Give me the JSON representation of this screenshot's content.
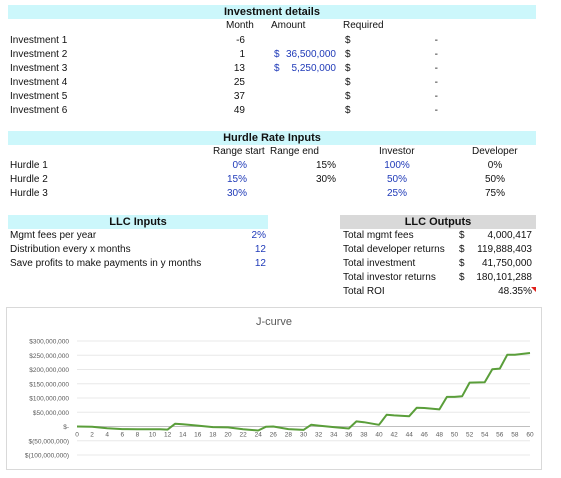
{
  "investment": {
    "title": "Investment details",
    "col_month": "Month",
    "col_amount": "Amount",
    "col_required": "Required",
    "rows": [
      {
        "name": "Investment 1",
        "month": "-6",
        "amount_sym": "",
        "amount": "",
        "req_sym": "$",
        "req": "-"
      },
      {
        "name": "Investment 2",
        "month": "1",
        "amount_sym": "$",
        "amount": "36,500,000",
        "req_sym": "$",
        "req": "-"
      },
      {
        "name": "Investment 3",
        "month": "13",
        "amount_sym": "$",
        "amount": "5,250,000",
        "req_sym": "$",
        "req": "-"
      },
      {
        "name": "Investment 4",
        "month": "25",
        "amount_sym": "",
        "amount": "",
        "req_sym": "$",
        "req": "-"
      },
      {
        "name": "Investment 5",
        "month": "37",
        "amount_sym": "",
        "amount": "",
        "req_sym": "$",
        "req": "-"
      },
      {
        "name": "Investment 6",
        "month": "49",
        "amount_sym": "",
        "amount": "",
        "req_sym": "$",
        "req": "-"
      }
    ]
  },
  "hurdle": {
    "title": "Hurdle Rate Inputs",
    "col_start": "Range start",
    "col_end": "Range end",
    "col_investor": "Investor",
    "col_developer": "Developer",
    "rows": [
      {
        "name": "Hurdle 1",
        "start": "0%",
        "end": "15%",
        "investor": "100%",
        "developer": "0%"
      },
      {
        "name": "Hurdle 2",
        "start": "15%",
        "end": "30%",
        "investor": "50%",
        "developer": "50%"
      },
      {
        "name": "Hurdle 3",
        "start": "30%",
        "end": "",
        "investor": "25%",
        "developer": "75%"
      }
    ]
  },
  "llc_inputs": {
    "title": "LLC Inputs",
    "rows": [
      {
        "label": "Mgmt fees per year",
        "value": "2%"
      },
      {
        "label": "Distribution every x months",
        "value": "12"
      },
      {
        "label": "Save profits to make payments in y months",
        "value": "12"
      }
    ]
  },
  "llc_outputs": {
    "title": "LLC Outputs",
    "rows": [
      {
        "label": "Total mgmt fees",
        "sym": "$",
        "value": "4,000,417"
      },
      {
        "label": "Total developer returns",
        "sym": "$",
        "value": "119,888,403"
      },
      {
        "label": "Total investment",
        "sym": "$",
        "value": "41,750,000"
      },
      {
        "label": "Total investor returns",
        "sym": "$",
        "value": "180,101,288"
      },
      {
        "label": "Total ROI",
        "sym": "",
        "value": "48.35%"
      }
    ]
  },
  "colors": {
    "header_cyan": "#ccf7fb",
    "header_gray": "#d9d9d9",
    "line": "#5a9e3a",
    "blue_input": "#1f3ab8"
  },
  "chart_data": {
    "type": "line",
    "title": "J-curve",
    "xlabel": "",
    "ylabel": "",
    "ylim": [
      -100000000,
      300000000
    ],
    "xlim": [
      0,
      60
    ],
    "y_ticks": [
      300000000,
      250000000,
      200000000,
      150000000,
      100000000,
      50000000,
      0,
      -50000000,
      -100000000
    ],
    "y_tick_labels": [
      "$300,000,000",
      "$250,000,000",
      "$200,000,000",
      "$150,000,000",
      "$100,000,000",
      "$50,000,000",
      "$-",
      "$(50,000,000)",
      "$(100,000,000)"
    ],
    "x_tick_labels": [
      "0",
      "2",
      "4",
      "6",
      "8",
      "10",
      "12",
      "14",
      "16",
      "18",
      "20",
      "22",
      "24",
      "26",
      "28",
      "30",
      "32",
      "34",
      "36",
      "38",
      "40",
      "42",
      "44",
      "46",
      "48",
      "50",
      "52",
      "54",
      "56",
      "58",
      "60"
    ],
    "grid": true,
    "series": [
      {
        "values": [
          [
            0,
            0
          ],
          [
            2,
            -1000000
          ],
          [
            4,
            -6000000
          ],
          [
            6,
            -9000000
          ],
          [
            8,
            -10000000
          ],
          [
            10,
            -10000000
          ],
          [
            11,
            -10000000
          ],
          [
            12,
            -11000000
          ],
          [
            13,
            10000000
          ],
          [
            14,
            8000000
          ],
          [
            16,
            3000000
          ],
          [
            18,
            -2000000
          ],
          [
            20,
            -3000000
          ],
          [
            22,
            -10000000
          ],
          [
            24,
            -14000000
          ],
          [
            25,
            -1000000
          ],
          [
            26,
            0
          ],
          [
            28,
            -9000000
          ],
          [
            30,
            -12000000
          ],
          [
            31,
            6000000
          ],
          [
            32,
            3000000
          ],
          [
            34,
            -2000000
          ],
          [
            36,
            -7000000
          ],
          [
            37,
            18000000
          ],
          [
            38,
            15000000
          ],
          [
            40,
            6000000
          ],
          [
            41,
            41000000
          ],
          [
            42,
            39000000
          ],
          [
            44,
            36000000
          ],
          [
            45,
            66000000
          ],
          [
            46,
            65000000
          ],
          [
            48,
            60000000
          ],
          [
            49,
            104000000
          ],
          [
            50,
            104000000
          ],
          [
            51,
            106000000
          ],
          [
            52,
            154000000
          ],
          [
            54,
            155000000
          ],
          [
            55,
            201000000
          ],
          [
            56,
            203000000
          ],
          [
            57,
            252000000
          ],
          [
            58,
            252000000
          ],
          [
            60,
            258000000
          ]
        ]
      }
    ]
  }
}
